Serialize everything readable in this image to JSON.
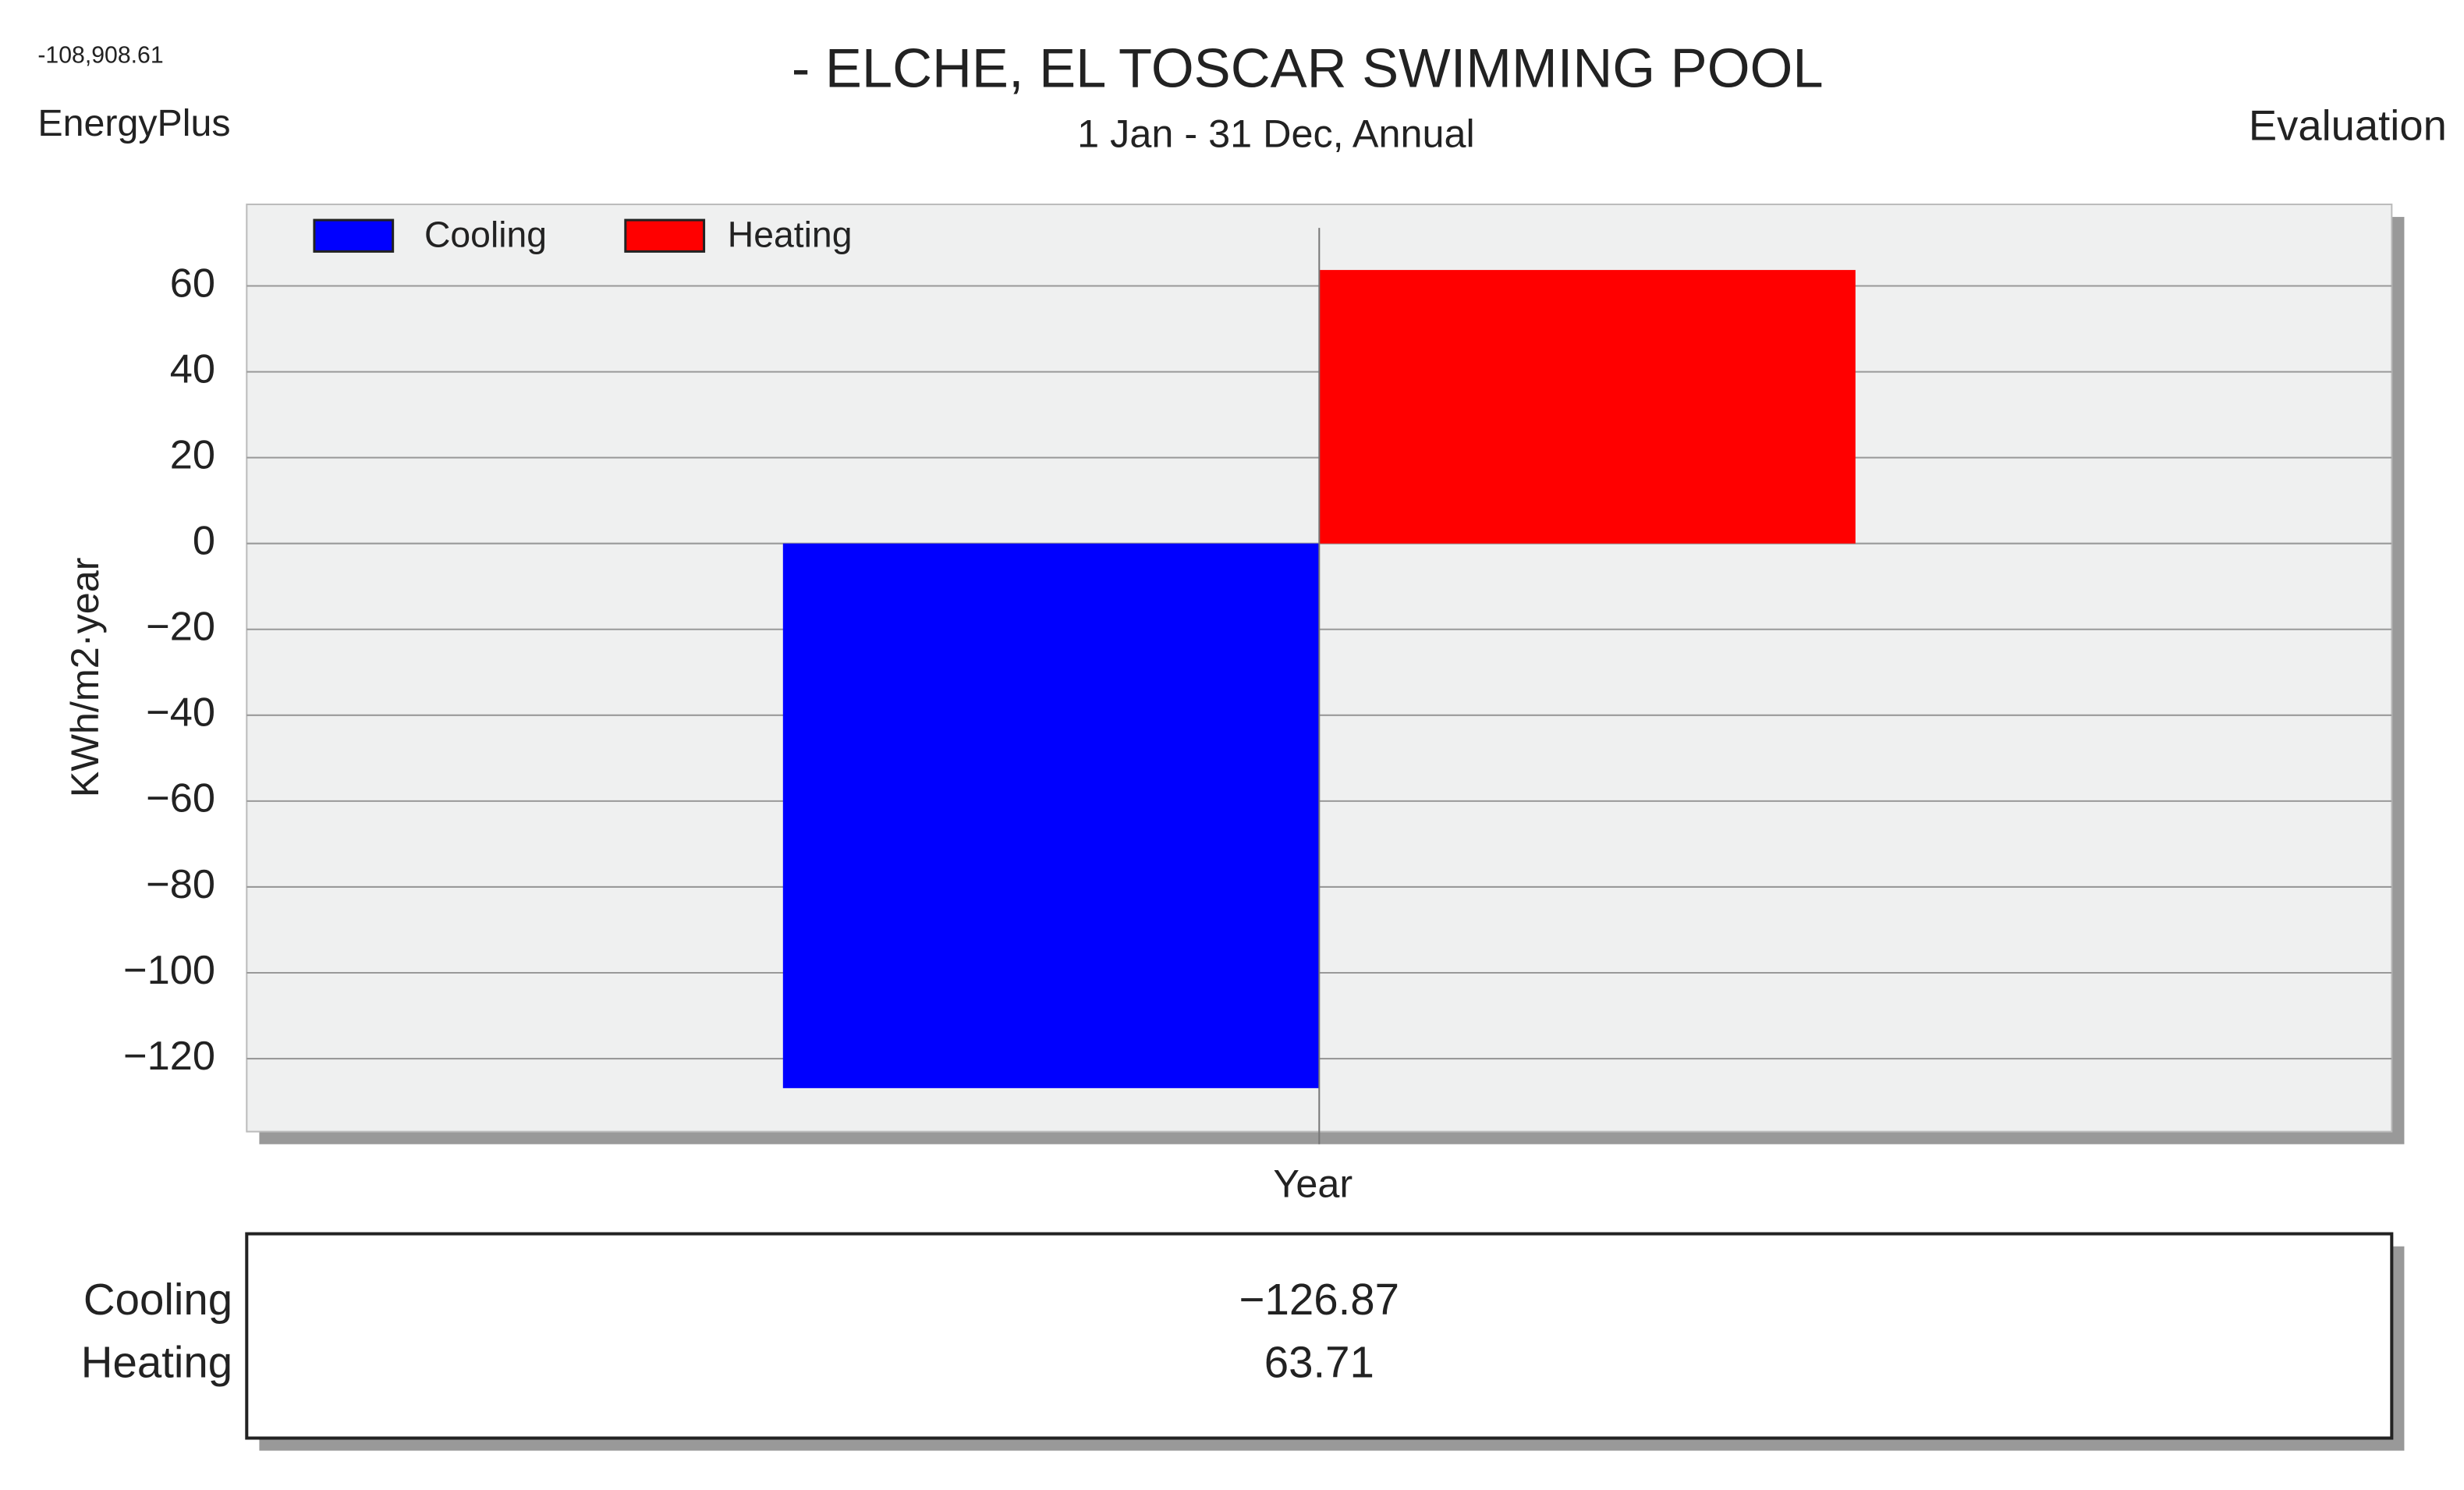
{
  "chart_data": {
    "type": "bar",
    "title": "- ELCHE, EL TOSCAR SWIMMING POOL",
    "subtitle": "1 Jan - 31 Dec, Annual",
    "annotations": [
      "-108,908.61",
      "EnergyPlus",
      "Evaluation"
    ],
    "y_label": "KWh/m2·year",
    "categories": [
      "Year"
    ],
    "series": [
      {
        "name": "Cooling",
        "color": "#0000ff",
        "values": [
          -126.87
        ],
        "value_labels": [
          "−126.87"
        ]
      },
      {
        "name": "Heating",
        "color": "#ff0000",
        "values": [
          63.71
        ],
        "value_labels": [
          "63.71"
        ]
      }
    ],
    "ylim": [
      -137,
      79
    ],
    "yticks": [
      {
        "value": -120,
        "label": "−120"
      },
      {
        "value": -100,
        "label": "−100"
      },
      {
        "value": -80,
        "label": "−80"
      },
      {
        "value": -60,
        "label": "−60"
      },
      {
        "value": -40,
        "label": "−40"
      },
      {
        "value": -20,
        "label": "−20"
      },
      0,
      20,
      40,
      60
    ],
    "grid": true,
    "legend": "upper left"
  }
}
